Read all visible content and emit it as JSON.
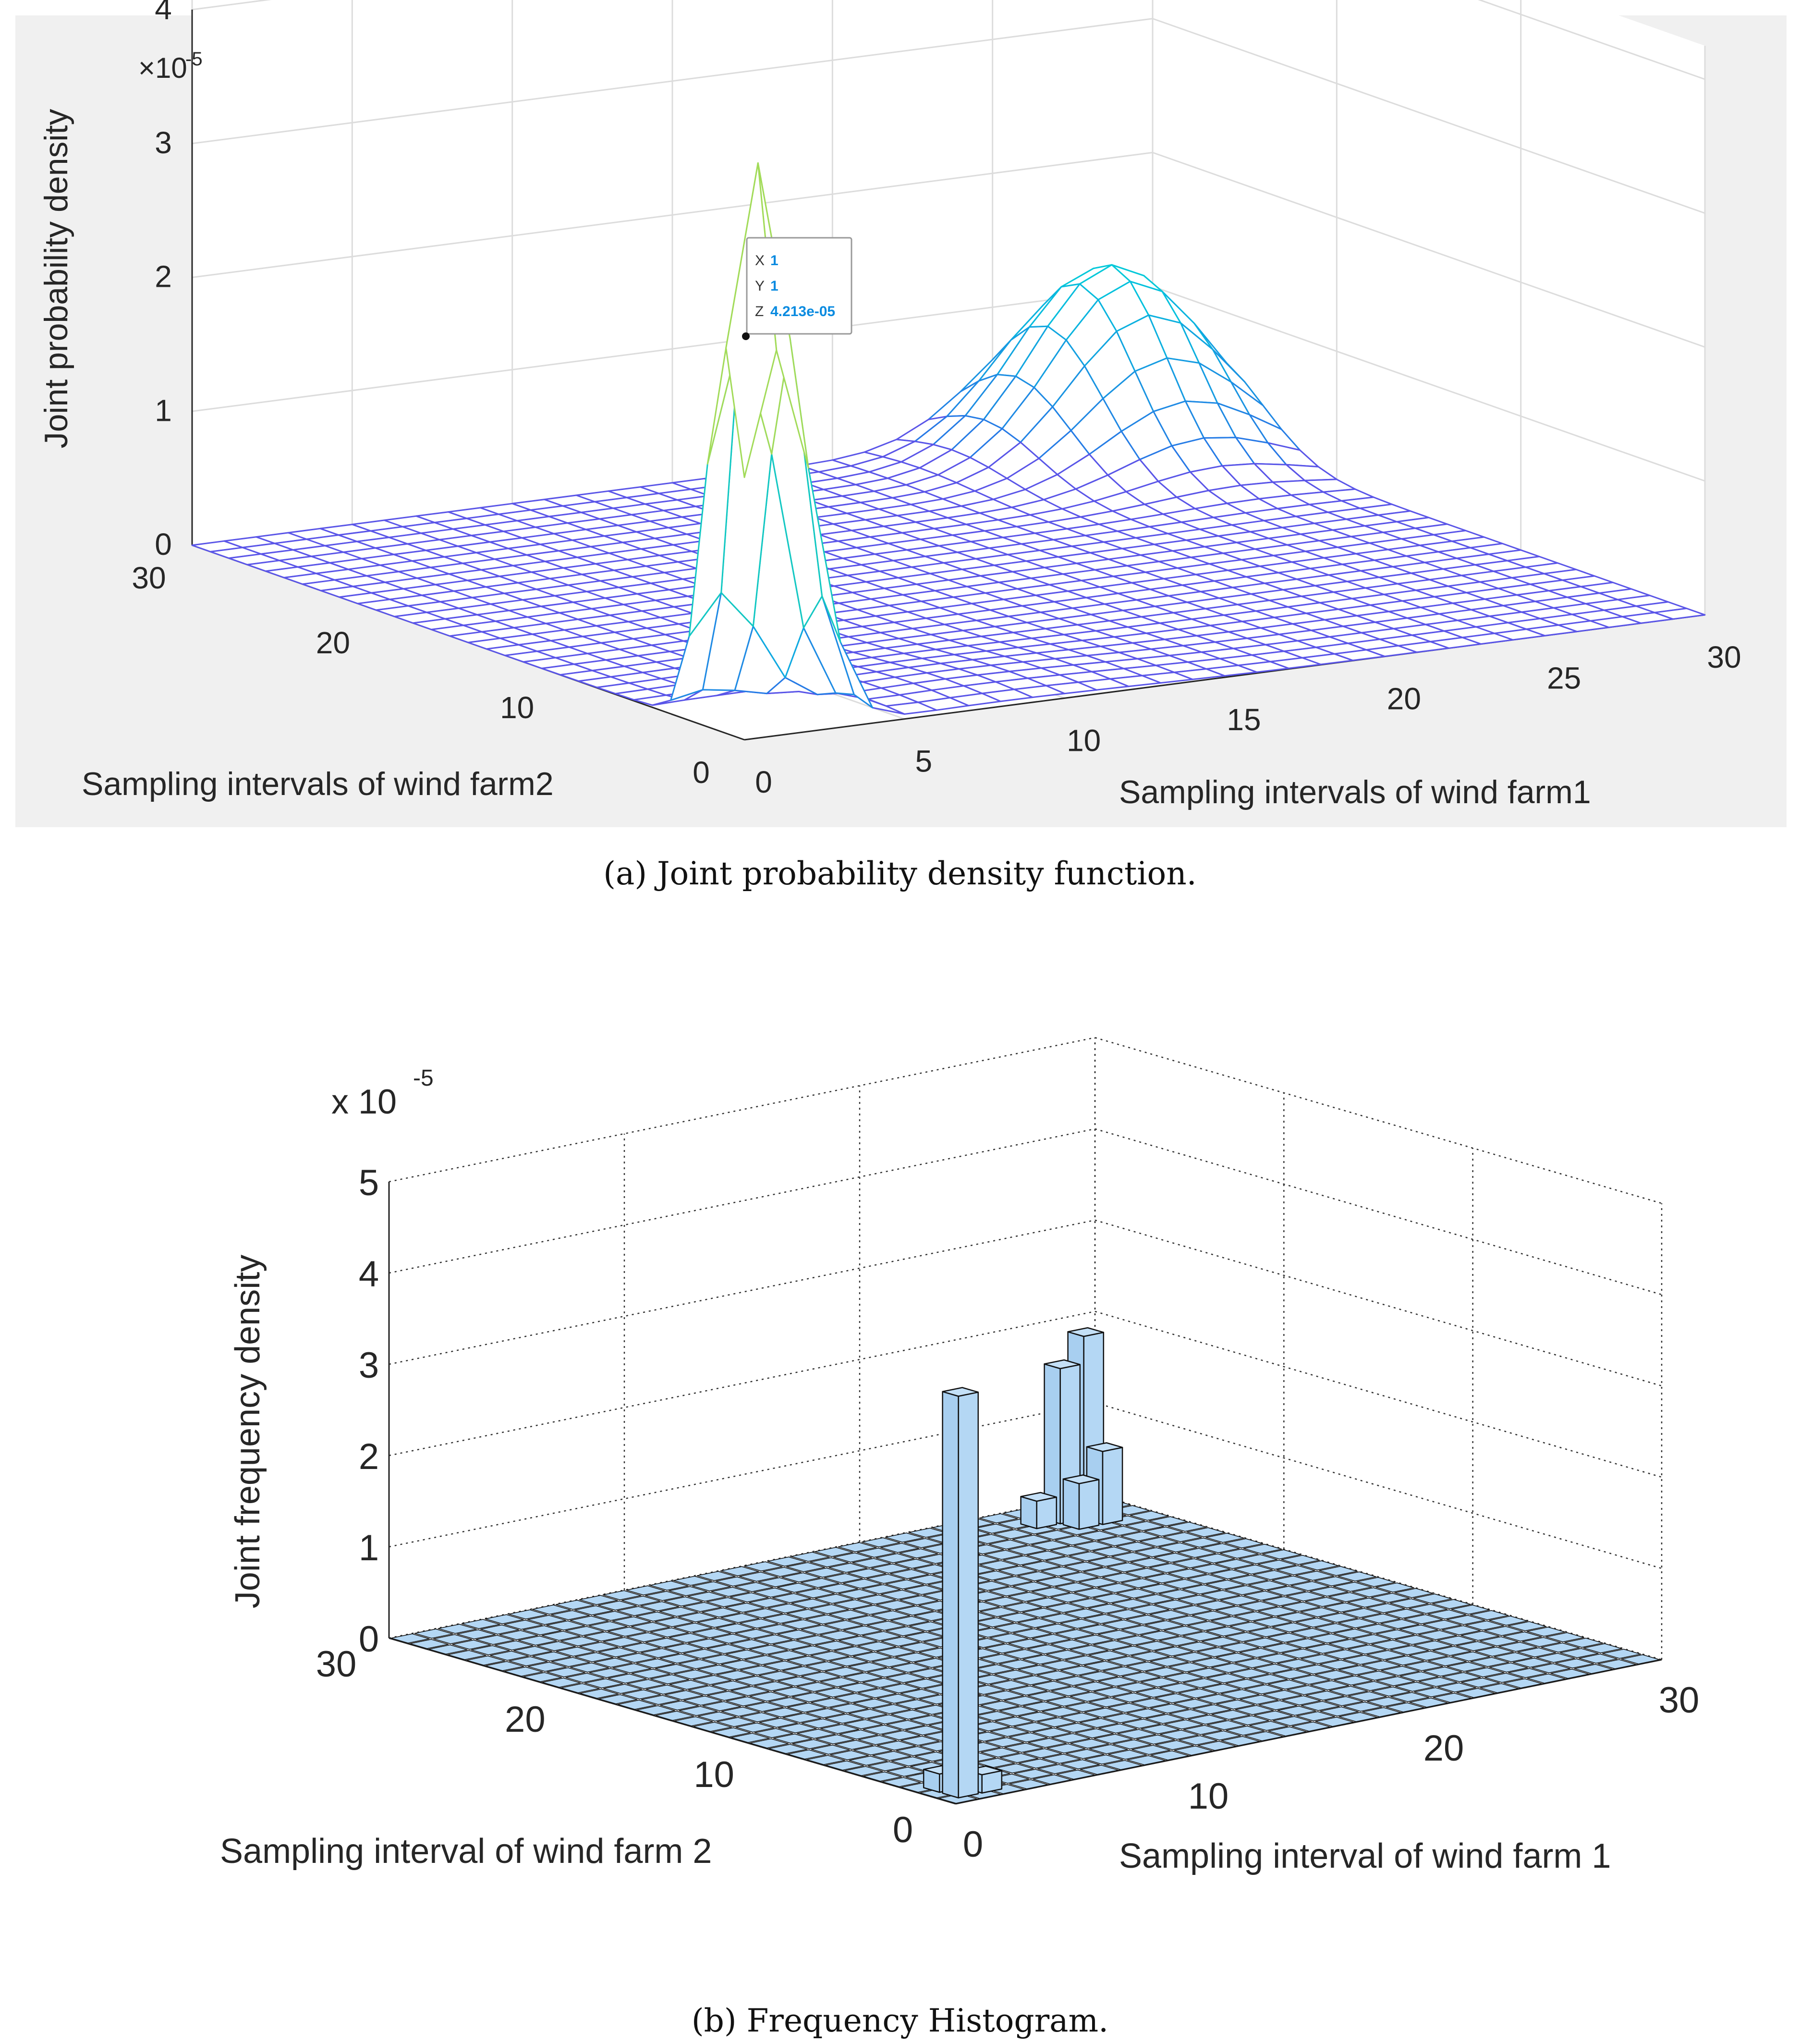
{
  "chart_data": [
    {
      "type": "surface",
      "caption": "(a) Joint probability density function.",
      "zlabel": "Joint probability density",
      "xlabel": "Sampling intervals of wind farm1",
      "ylabel": "Sampling intervals of wind farm2",
      "exponent_base": "×10",
      "exponent_power": "-5",
      "xlim": [
        0,
        30
      ],
      "ylim": [
        0,
        30
      ],
      "zlim": [
        0,
        4
      ],
      "xticks": [
        0,
        5,
        10,
        15,
        20,
        25,
        30
      ],
      "yticks": [
        0,
        10,
        20,
        30
      ],
      "zticks": [
        0,
        1,
        2,
        3,
        4
      ],
      "grid": true,
      "peaks": [
        {
          "x": 1,
          "y": 1,
          "z": 4.213e-05,
          "label": "sharp peak at origin"
        },
        {
          "x": 27,
          "y": 27,
          "z": 1.4e-05,
          "label": "secondary peak"
        }
      ],
      "datatip": {
        "x_label": "X",
        "x_value": "1",
        "y_label": "Y",
        "y_value": "1",
        "z_label": "Z",
        "z_value": "4.213e-05"
      }
    },
    {
      "type": "bar3",
      "caption": "(b) Frequency Histogram.",
      "zlabel": "Joint frequency density",
      "xlabel": "Sampling interval of wind farm 1",
      "ylabel": "Sampling interval of wind farm 2",
      "exponent_base": "x 10",
      "exponent_power": "-5",
      "xlim": [
        0,
        30
      ],
      "ylim": [
        0,
        30
      ],
      "zlim": [
        0,
        5
      ],
      "xticks": [
        0,
        10,
        20,
        30
      ],
      "yticks": [
        0,
        10,
        20,
        30
      ],
      "zticks": [
        0,
        1,
        2,
        3,
        4,
        5
      ],
      "grid": true,
      "bars": [
        {
          "x": 1,
          "y": 1,
          "z": 4.4e-05
        },
        {
          "x": 28,
          "y": 28,
          "z": 2e-05
        },
        {
          "x": 27,
          "y": 28,
          "z": 1.7e-05
        },
        {
          "x": 28,
          "y": 27,
          "z": 8e-06
        },
        {
          "x": 27,
          "y": 27,
          "z": 5e-06
        },
        {
          "x": 26,
          "y": 28,
          "z": 3e-06
        },
        {
          "x": 2,
          "y": 1,
          "z": 2e-06
        },
        {
          "x": 1,
          "y": 2,
          "z": 2e-06
        }
      ]
    }
  ]
}
